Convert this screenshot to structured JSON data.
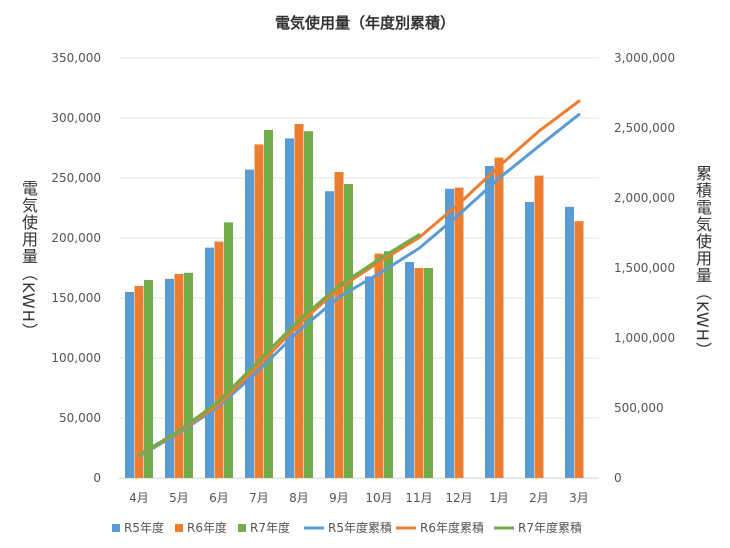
{
  "chart_data": {
    "type": "bar+line",
    "title": "電気使用量（年度別累積）",
    "ylabel": "電気使用量（KWH）",
    "y2label": "累積電気使用量（KWH）",
    "ylim": [
      0,
      350000
    ],
    "y2lim": [
      0,
      3000000
    ],
    "yticks": [
      "0",
      "50,000",
      "100,000",
      "150,000",
      "200,000",
      "250,000",
      "300,000",
      "350,000"
    ],
    "y2ticks": [
      "0",
      "500,000",
      "1,000,000",
      "1,500,000",
      "2,000,000",
      "2,500,000",
      "3,000,000"
    ],
    "categories": [
      "4月",
      "5月",
      "6月",
      "7月",
      "8月",
      "9月",
      "10月",
      "11月",
      "12月",
      "1月",
      "2月",
      "3月"
    ],
    "grid": true,
    "legend_position": "bottom",
    "bar_series": [
      {
        "name": "R5年度",
        "color": "#5B9BD5",
        "values": [
          155000,
          166000,
          192000,
          257000,
          283000,
          239000,
          168000,
          180000,
          241000,
          260000,
          230000,
          226000
        ]
      },
      {
        "name": "R6年度",
        "color": "#ED7D31",
        "values": [
          160000,
          170000,
          197000,
          278000,
          295000,
          255000,
          187000,
          175000,
          242000,
          267000,
          252000,
          214000
        ]
      },
      {
        "name": "R7年度",
        "color": "#70AD47",
        "values": [
          165000,
          171000,
          213000,
          290000,
          289000,
          245000,
          189000,
          175000,
          null,
          null,
          null,
          null
        ]
      }
    ],
    "line_series": [
      {
        "name": "R5年度累積",
        "color": "#5B9BD5",
        "values": [
          155000,
          321000,
          513000,
          770000,
          1053000,
          1292000,
          1460000,
          1640000,
          1881000,
          2141000,
          2371000,
          2597000
        ]
      },
      {
        "name": "R6年度累積",
        "color": "#ED7D31",
        "values": [
          160000,
          330000,
          527000,
          805000,
          1100000,
          1355000,
          1542000,
          1717000,
          1959000,
          2226000,
          2478000,
          2692000
        ]
      },
      {
        "name": "R7年度累積",
        "color": "#70AD47",
        "values": [
          165000,
          336000,
          549000,
          839000,
          1128000,
          1373000,
          1562000,
          1737000,
          null,
          null,
          null,
          null
        ]
      }
    ]
  }
}
